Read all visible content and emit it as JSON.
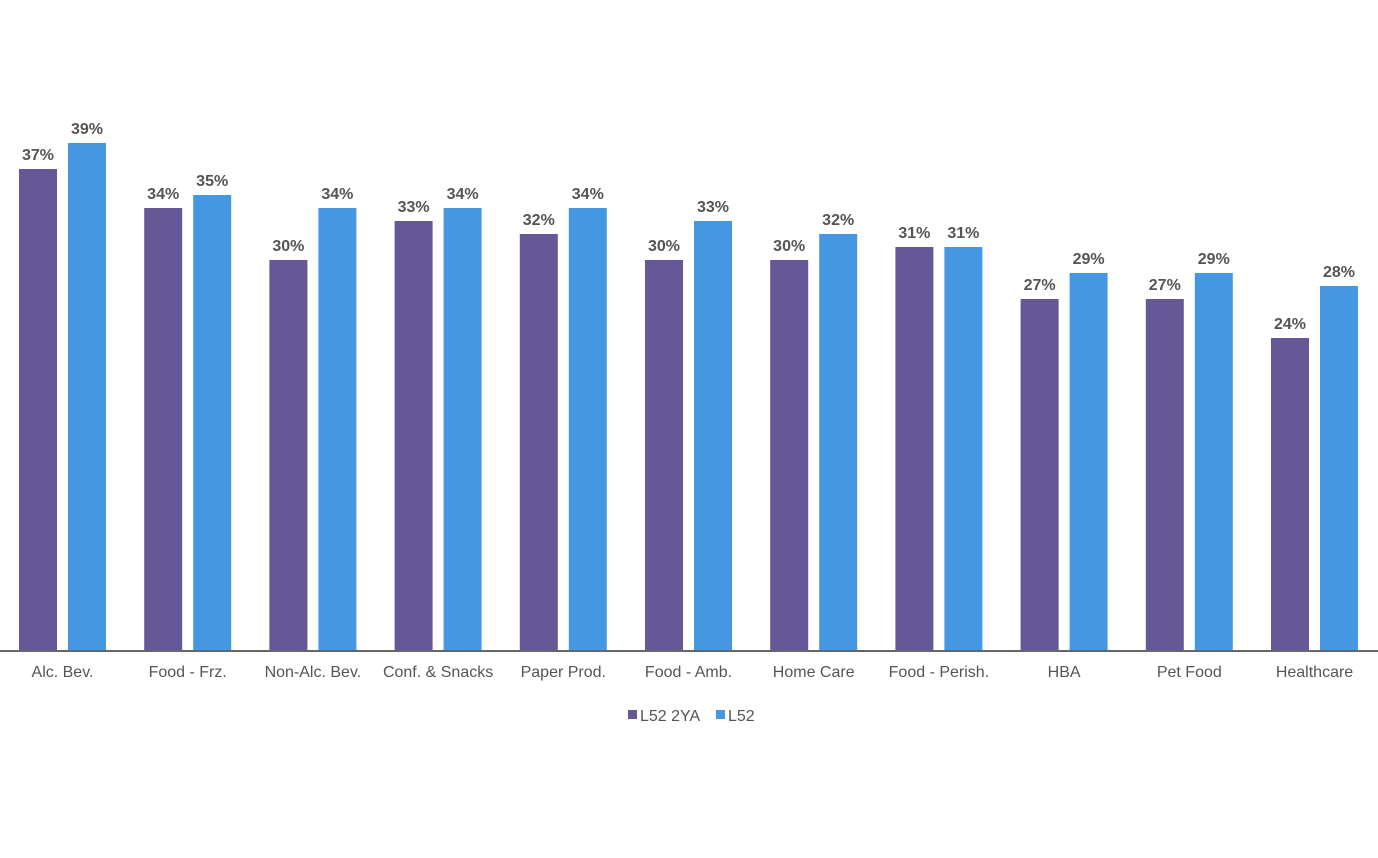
{
  "chart_data": {
    "type": "bar",
    "title": "",
    "xlabel": "",
    "ylabel": "",
    "ylim": [
      0,
      39
    ],
    "grid": false,
    "legend_position": "bottom",
    "categories": [
      "Alc. Bev.",
      "Food - Frz.",
      "Non-Alc. Bev.",
      "Conf. & Snacks",
      "Paper Prod.",
      "Food - Amb.",
      "Home Care",
      "Food - Perish.",
      "HBA",
      "Pet Food",
      "Healthcare"
    ],
    "series": [
      {
        "name": "L52 2YA",
        "color": "#665896",
        "values": [
          37,
          34,
          30,
          33,
          32,
          30,
          30,
          31,
          27,
          27,
          24
        ],
        "labels": [
          "37%",
          "34%",
          "30%",
          "33%",
          "32%",
          "30%",
          "30%",
          "31%",
          "27%",
          "27%",
          "24%"
        ]
      },
      {
        "name": "L52",
        "color": "#4597e2",
        "values": [
          39,
          35,
          34,
          34,
          34,
          33,
          32,
          31,
          29,
          29,
          28
        ],
        "labels": [
          "39%",
          "35%",
          "34%",
          "34%",
          "34%",
          "33%",
          "32%",
          "31%",
          "29%",
          "29%",
          "28%"
        ]
      }
    ]
  }
}
